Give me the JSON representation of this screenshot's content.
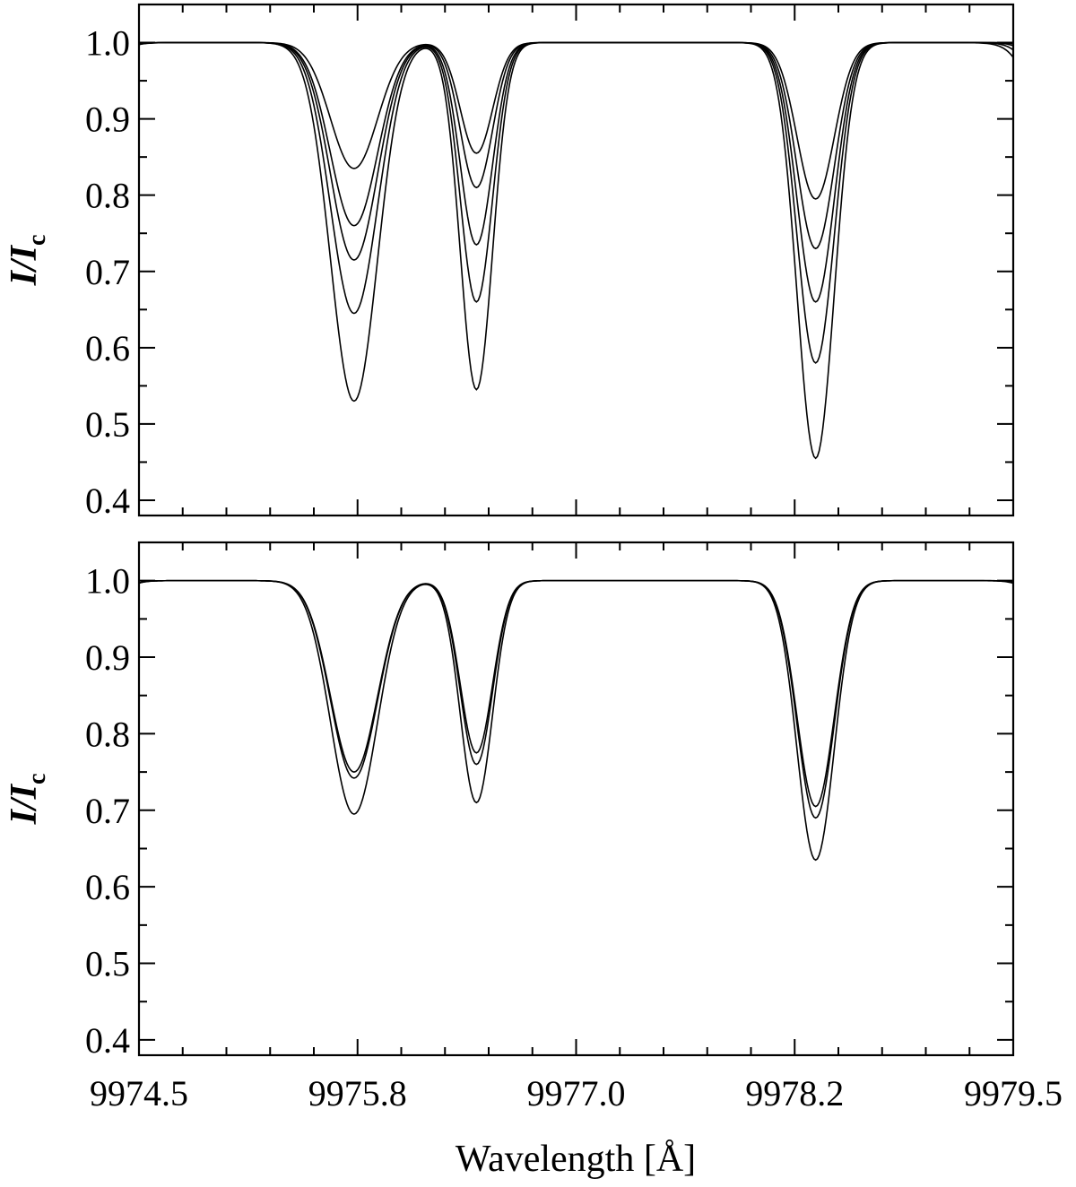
{
  "chart_data": [
    {
      "type": "line",
      "panel": "top",
      "title": "",
      "xlabel": "",
      "ylabel": "I/I",
      "ylabel_subscript": "c",
      "xlim": [
        9974.5,
        9979.5
      ],
      "ylim": [
        0.38,
        1.05
      ],
      "xticks": [],
      "yticks": [
        "1.0",
        "0.9",
        "0.8",
        "0.7",
        "0.6",
        "0.5",
        "0.4"
      ],
      "grid": false,
      "series": [
        {
          "lines": [
            {
              "center": 9975.73,
              "depth": 0.165,
              "width": 0.19
            },
            {
              "center": 9976.43,
              "depth": 0.145,
              "width": 0.13
            },
            {
              "center": 9978.37,
              "depth": 0.205,
              "width": 0.15
            },
            {
              "center": 9974.0,
              "depth": 0.9,
              "width": 0.2
            },
            {
              "center": 9980.05,
              "depth": 0.9,
              "width": 0.2
            }
          ]
        },
        {
          "lines": [
            {
              "center": 9975.73,
              "depth": 0.24,
              "width": 0.19
            },
            {
              "center": 9976.43,
              "depth": 0.19,
              "width": 0.13
            },
            {
              "center": 9978.37,
              "depth": 0.27,
              "width": 0.15
            },
            {
              "center": 9973.98,
              "depth": 0.9,
              "width": 0.21
            },
            {
              "center": 9980.03,
              "depth": 0.9,
              "width": 0.21
            }
          ]
        },
        {
          "lines": [
            {
              "center": 9975.73,
              "depth": 0.285,
              "width": 0.19
            },
            {
              "center": 9976.43,
              "depth": 0.265,
              "width": 0.13
            },
            {
              "center": 9978.37,
              "depth": 0.34,
              "width": 0.15
            },
            {
              "center": 9973.96,
              "depth": 0.9,
              "width": 0.22
            },
            {
              "center": 9980.01,
              "depth": 0.9,
              "width": 0.22
            }
          ]
        },
        {
          "lines": [
            {
              "center": 9975.73,
              "depth": 0.355,
              "width": 0.19
            },
            {
              "center": 9976.43,
              "depth": 0.34,
              "width": 0.13
            },
            {
              "center": 9978.37,
              "depth": 0.42,
              "width": 0.15
            },
            {
              "center": 9973.94,
              "depth": 0.9,
              "width": 0.23
            },
            {
              "center": 9979.99,
              "depth": 0.9,
              "width": 0.23
            }
          ]
        },
        {
          "lines": [
            {
              "center": 9975.73,
              "depth": 0.47,
              "width": 0.19
            },
            {
              "center": 9976.43,
              "depth": 0.455,
              "width": 0.13
            },
            {
              "center": 9978.37,
              "depth": 0.545,
              "width": 0.15
            },
            {
              "center": 9973.92,
              "depth": 0.9,
              "width": 0.24
            },
            {
              "center": 9979.97,
              "depth": 0.9,
              "width": 0.24
            }
          ]
        }
      ]
    },
    {
      "type": "line",
      "panel": "bottom",
      "title": "",
      "xlabel": "Wavelength [Å]",
      "ylabel": "I/I",
      "ylabel_subscript": "c",
      "xlim": [
        9974.5,
        9979.5
      ],
      "ylim": [
        0.38,
        1.05
      ],
      "xticks": [
        "9974.5",
        "9975.8",
        "9977.0",
        "9978.2",
        "9979.5"
      ],
      "yticks": [
        "1.0",
        "0.9",
        "0.8",
        "0.7",
        "0.6",
        "0.5",
        "0.4"
      ],
      "grid": false,
      "series": [
        {
          "lines": [
            {
              "center": 9975.73,
              "depth": 0.25,
              "width": 0.19
            },
            {
              "center": 9976.43,
              "depth": 0.225,
              "width": 0.13
            },
            {
              "center": 9978.37,
              "depth": 0.295,
              "width": 0.15
            },
            {
              "center": 9974.0,
              "depth": 0.9,
              "width": 0.21
            },
            {
              "center": 9980.05,
              "depth": 0.9,
              "width": 0.21
            }
          ]
        },
        {
          "lines": [
            {
              "center": 9975.73,
              "depth": 0.258,
              "width": 0.19
            },
            {
              "center": 9976.43,
              "depth": 0.24,
              "width": 0.13
            },
            {
              "center": 9978.37,
              "depth": 0.31,
              "width": 0.15
            },
            {
              "center": 9973.99,
              "depth": 0.9,
              "width": 0.215
            },
            {
              "center": 9980.04,
              "depth": 0.9,
              "width": 0.215
            }
          ]
        },
        {
          "lines": [
            {
              "center": 9975.73,
              "depth": 0.305,
              "width": 0.19
            },
            {
              "center": 9976.43,
              "depth": 0.29,
              "width": 0.13
            },
            {
              "center": 9978.37,
              "depth": 0.365,
              "width": 0.15
            },
            {
              "center": 9973.97,
              "depth": 0.9,
              "width": 0.22
            },
            {
              "center": 9980.02,
              "depth": 0.9,
              "width": 0.22
            }
          ]
        }
      ]
    }
  ]
}
